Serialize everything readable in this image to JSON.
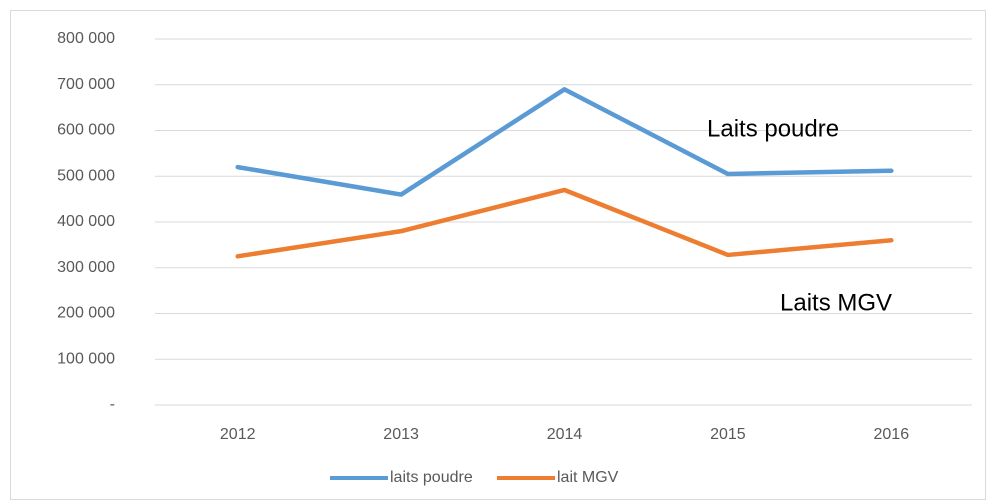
{
  "chart_data": {
    "type": "line",
    "categories": [
      "2012",
      "2013",
      "2014",
      "2015",
      "2016"
    ],
    "series": [
      {
        "name": "laits poudre",
        "color": "#5b9bd5",
        "values": [
          520000,
          460000,
          690000,
          505000,
          512000
        ]
      },
      {
        "name": "lait MGV",
        "color": "#ed7d31",
        "values": [
          325000,
          380000,
          470000,
          328000,
          360000
        ]
      }
    ],
    "ylim": [
      0,
      800000
    ],
    "yticks": [
      {
        "value": 0,
        "label": "-"
      },
      {
        "value": 100000,
        "label": "100 000"
      },
      {
        "value": 200000,
        "label": "200 000"
      },
      {
        "value": 300000,
        "label": "300 000"
      },
      {
        "value": 400000,
        "label": "400 000"
      },
      {
        "value": 500000,
        "label": "500 000"
      },
      {
        "value": 600000,
        "label": "600 000"
      },
      {
        "value": 700000,
        "label": "700 000"
      },
      {
        "value": 800000,
        "label": "800 000"
      }
    ],
    "grid": true,
    "legend": "bottom",
    "annotations": [
      "Laits poudre",
      "Laits MGV"
    ]
  }
}
